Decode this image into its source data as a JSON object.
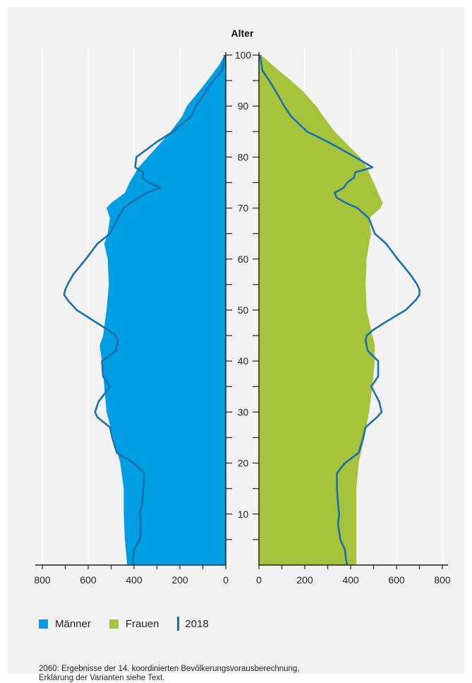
{
  "chart_data": {
    "type": "population-pyramid",
    "ylabel": "Alter",
    "age_ticks": [
      10,
      20,
      30,
      40,
      50,
      60,
      70,
      80,
      90,
      100
    ],
    "x_ticks_left": [
      "800",
      "600",
      "400",
      "200",
      "0"
    ],
    "x_ticks_right": [
      "0",
      "200",
      "400",
      "600",
      "800"
    ],
    "xlim": [
      0,
      800
    ],
    "ylim": [
      0,
      100
    ],
    "grid": true,
    "legend": [
      {
        "name": "Männer",
        "color": "#009fe3",
        "kind": "area"
      },
      {
        "name": "Frauen",
        "color": "#a5c33b",
        "kind": "area"
      },
      {
        "name": "2018",
        "color": "#1a6fae",
        "kind": "line"
      }
    ],
    "series": [
      {
        "name": "Männer",
        "ages": [
          0,
          5,
          10,
          15,
          20,
          25,
          30,
          35,
          40,
          43,
          45,
          50,
          55,
          60,
          63,
          65,
          68,
          70,
          71,
          73,
          75,
          78,
          80,
          85,
          88,
          90,
          93,
          95,
          98,
          100
        ],
        "values": [
          430,
          440,
          445,
          445,
          460,
          490,
          520,
          530,
          540,
          550,
          535,
          520,
          510,
          515,
          530,
          515,
          505,
          520,
          500,
          440,
          420,
          380,
          340,
          240,
          190,
          170,
          115,
          80,
          30,
          5
        ]
      },
      {
        "name": "Frauen",
        "ages": [
          0,
          5,
          10,
          15,
          20,
          25,
          30,
          35,
          40,
          43,
          45,
          50,
          55,
          60,
          63,
          65,
          68,
          70,
          71,
          73,
          75,
          78,
          80,
          85,
          88,
          90,
          93,
          95,
          98,
          100
        ],
        "values": [
          425,
          425,
          425,
          425,
          435,
          460,
          480,
          495,
          505,
          505,
          495,
          470,
          465,
          470,
          480,
          490,
          480,
          530,
          540,
          520,
          500,
          470,
          440,
          330,
          280,
          250,
          190,
          140,
          60,
          10
        ]
      },
      {
        "name": "2018",
        "ages": [
          0,
          1,
          3,
          5,
          8,
          10,
          12,
          15,
          18,
          20,
          22,
          25,
          27,
          29,
          30,
          32,
          35,
          37,
          40,
          42,
          44,
          45,
          46,
          48,
          50,
          52,
          53,
          54,
          55,
          57,
          60,
          63,
          65,
          68,
          70,
          71,
          72,
          73,
          74,
          75,
          76,
          77,
          78,
          80,
          83,
          85,
          88,
          90,
          92,
          95,
          97,
          100
        ],
        "values_male": [
          405,
          405,
          400,
          375,
          370,
          375,
          365,
          360,
          355,
          400,
          475,
          495,
          505,
          560,
          570,
          555,
          505,
          535,
          540,
          480,
          470,
          480,
          510,
          580,
          650,
          690,
          705,
          700,
          690,
          665,
          610,
          560,
          505,
          470,
          445,
          415,
          380,
          345,
          285,
          335,
          365,
          360,
          395,
          390,
          300,
          230,
          150,
          130,
          100,
          55,
          15,
          5
        ],
        "values_female": [
          385,
          380,
          375,
          355,
          345,
          350,
          345,
          340,
          340,
          375,
          435,
          455,
          465,
          515,
          535,
          525,
          490,
          520,
          520,
          475,
          465,
          470,
          495,
          565,
          640,
          685,
          700,
          700,
          690,
          660,
          605,
          555,
          505,
          480,
          430,
          380,
          340,
          330,
          370,
          385,
          415,
          420,
          495,
          420,
          300,
          210,
          140,
          110,
          85,
          45,
          15,
          5
        ]
      }
    ]
  },
  "legend": {
    "men_label": "Männer",
    "women_label": "Frauen",
    "line_label": "2018"
  },
  "note": {
    "line1": "2060: Ergebnisse der 14. koordinierten Bevölkerungsvorausberechnung,",
    "line2": "Erklärung der Varianten siehe Text."
  },
  "colors": {
    "men": "#009fe3",
    "women": "#a5c33b",
    "line": "#1a6fae",
    "axis": "#222222",
    "grid": "#ffffff"
  }
}
